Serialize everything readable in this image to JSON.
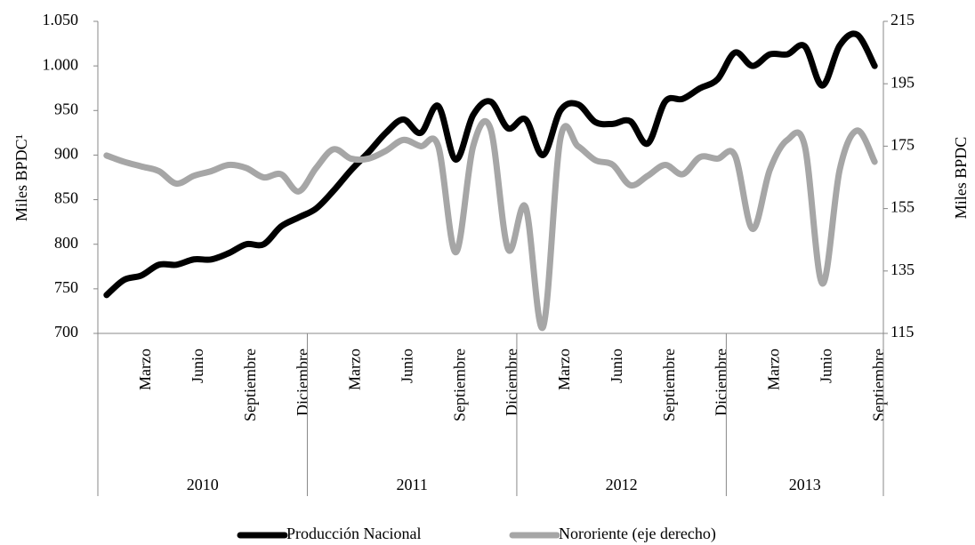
{
  "chart_data": {
    "type": "line",
    "y_label": "Miles  BPDC¹",
    "y2_label": "Miles  BPDC",
    "categories": [
      null,
      null,
      "Marzo",
      null,
      null,
      "Junio",
      null,
      null,
      "Septiembre",
      null,
      null,
      "Diciembre",
      null,
      null,
      "Marzo",
      null,
      null,
      "Junio",
      null,
      null,
      "Septiembre",
      null,
      null,
      "Diciembre",
      null,
      null,
      "Marzo",
      null,
      null,
      "Junio",
      null,
      null,
      "Septiembre",
      null,
      null,
      "Diciembre",
      null,
      null,
      "Marzo",
      null,
      null,
      "Junio",
      null,
      null,
      "Septiembre"
    ],
    "x_groups": [
      {
        "label": "2010",
        "count": 12
      },
      {
        "label": "2011",
        "count": 12
      },
      {
        "label": "2012",
        "count": 12
      },
      {
        "label": "2013",
        "count": 9
      }
    ],
    "series": [
      {
        "name": "Producción Nacional",
        "color": "#000000",
        "axis": "y",
        "values": [
          743,
          760,
          765,
          777,
          777,
          783,
          783,
          790,
          800,
          800,
          820,
          830,
          840,
          860,
          883,
          903,
          925,
          940,
          925,
          955,
          895,
          945,
          960,
          930,
          940,
          900,
          950,
          957,
          937,
          935,
          938,
          913,
          960,
          963,
          975,
          985,
          1015,
          1000,
          1013,
          1013,
          1022,
          978,
          1023,
          1035,
          1000
        ]
      },
      {
        "name": "Nororiente (eje derecho)",
        "color": "#a6a6a6",
        "axis": "y2",
        "values": [
          172,
          170,
          168.5,
          167,
          163,
          165.5,
          167,
          169,
          168,
          165,
          166,
          160.5,
          168,
          174,
          171,
          171,
          173.5,
          177,
          175,
          175,
          141,
          175,
          180.5,
          142,
          155.5,
          117,
          177.5,
          175,
          170.5,
          169,
          162.5,
          165.5,
          169,
          166,
          171.5,
          171,
          172,
          148.5,
          167.5,
          177,
          175,
          131,
          167.5,
          180,
          170
        ]
      }
    ],
    "ylim": [
      700,
      1050
    ],
    "yticks": [
      700,
      750,
      800,
      850,
      900,
      950,
      {
        "value": 1000,
        "label": "1.000"
      },
      {
        "value": 1050,
        "label": "1.050"
      }
    ],
    "y2lim": [
      115,
      215
    ],
    "y2ticks": [
      115,
      135,
      155,
      175,
      195,
      215
    ],
    "grid": false,
    "legend": "bottom"
  }
}
